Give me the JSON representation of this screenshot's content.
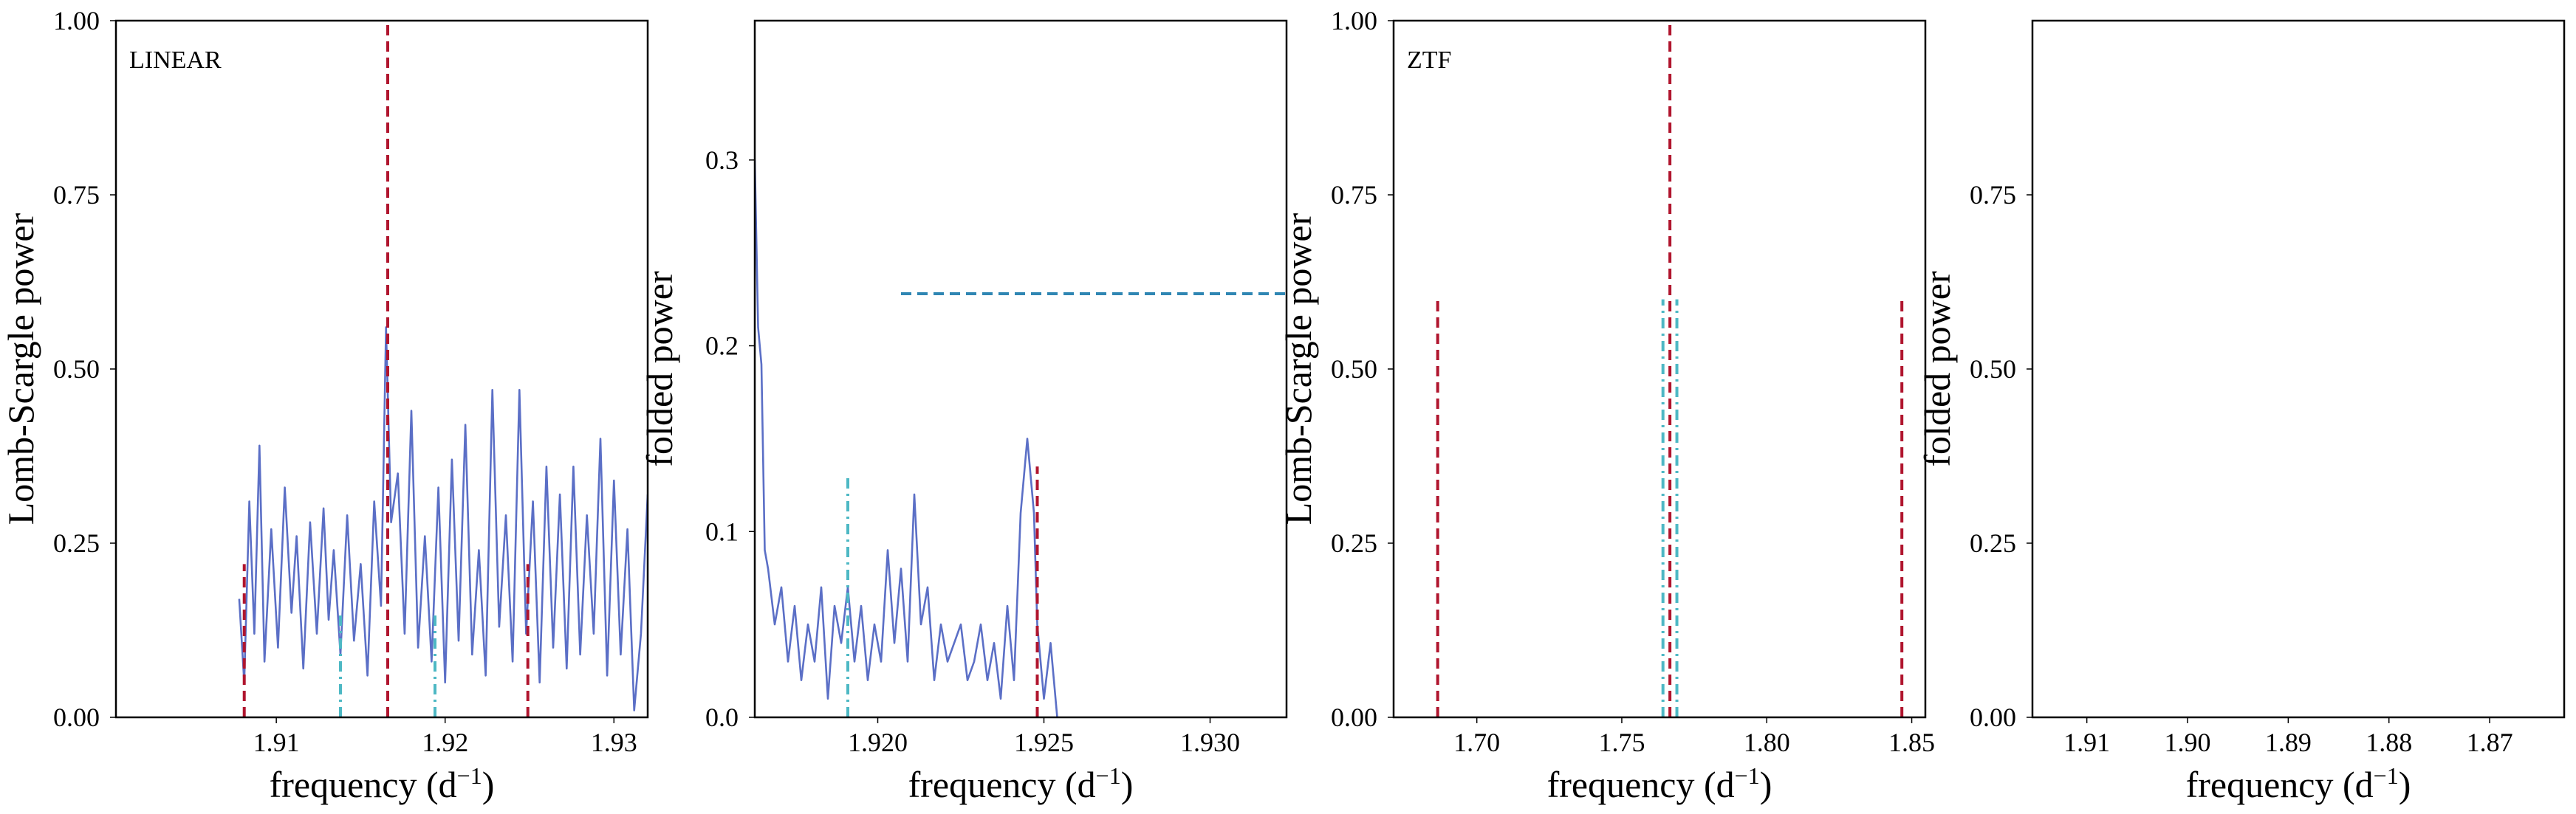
{
  "colors": {
    "series": "#5b6fc6",
    "primary_marker": "#b0152e",
    "alias_marker": "#4db8c4",
    "reference_line": "#2f86b3"
  },
  "chart_data": [
    {
      "type": "line",
      "panel_label": "LINEAR",
      "xlabel": "frequency (d",
      "xlabel_sup": "−1",
      "xlabel_end": ")",
      "ylabel": "Lomb-Scargle power",
      "xlim": [
        1.9005,
        1.932
      ],
      "ylim": [
        0,
        1.0
      ],
      "xticks": [
        {
          "value": 1.91,
          "label": "1.91"
        },
        {
          "value": 1.92,
          "label": "1.92"
        },
        {
          "value": 1.93,
          "label": "1.93"
        }
      ],
      "yticks": [
        {
          "value": 0.0,
          "label": "0.00"
        },
        {
          "value": 0.25,
          "label": "0.25"
        },
        {
          "value": 0.5,
          "label": "0.50"
        },
        {
          "value": 0.75,
          "label": "0.75"
        },
        {
          "value": 1.0,
          "label": "1.00"
        }
      ],
      "series": [
        {
          "x": [
            1.9078,
            1.9081,
            1.9084,
            1.9087,
            1.909,
            1.9093,
            1.9097,
            1.9101,
            1.9105,
            1.9109,
            1.9112,
            1.9116,
            1.912,
            1.9124,
            1.9128,
            1.9131,
            1.9134,
            1.9138,
            1.9142,
            1.9146,
            1.915,
            1.9154,
            1.9158,
            1.9162,
            1.9165,
            1.9168,
            1.9172,
            1.9176,
            1.918,
            1.9184,
            1.9188,
            1.9192,
            1.9196,
            1.92,
            1.9204,
            1.9208,
            1.9212,
            1.9216,
            1.922,
            1.9224,
            1.9228,
            1.9232,
            1.9236,
            1.924,
            1.9244,
            1.9248,
            1.9252,
            1.9256,
            1.926,
            1.9264,
            1.9268,
            1.9272,
            1.9276,
            1.928,
            1.9284,
            1.9288,
            1.9292,
            1.9296,
            1.93,
            1.9304,
            1.9308,
            1.9312,
            1.9316,
            1.932
          ],
          "y": [
            0.17,
            0.05,
            0.31,
            0.12,
            0.39,
            0.08,
            0.27,
            0.1,
            0.33,
            0.15,
            0.26,
            0.07,
            0.28,
            0.12,
            0.3,
            0.14,
            0.24,
            0.09,
            0.29,
            0.11,
            0.22,
            0.06,
            0.31,
            0.16,
            0.56,
            0.28,
            0.35,
            0.12,
            0.44,
            0.1,
            0.26,
            0.08,
            0.33,
            0.05,
            0.37,
            0.11,
            0.42,
            0.09,
            0.24,
            0.06,
            0.47,
            0.13,
            0.29,
            0.08,
            0.47,
            0.12,
            0.31,
            0.05,
            0.36,
            0.1,
            0.32,
            0.07,
            0.36,
            0.09,
            0.29,
            0.12,
            0.4,
            0.06,
            0.34,
            0.09,
            0.27,
            0.01,
            0.12,
            0.32
          ]
        }
      ],
      "vlines": [
        {
          "x": 1.9081,
          "y0": 0,
          "y1": 0.22,
          "style": "primary"
        },
        {
          "x": 1.9166,
          "y0": 0,
          "y1": 1.0,
          "style": "primary"
        },
        {
          "x": 1.9249,
          "y0": 0,
          "y1": 0.22,
          "style": "primary"
        },
        {
          "x": 1.9138,
          "y0": 0,
          "y1": 0.15,
          "style": "alias"
        },
        {
          "x": 1.9194,
          "y0": 0,
          "y1": 0.15,
          "style": "alias"
        }
      ],
      "hlines": []
    },
    {
      "type": "line",
      "panel_label": "",
      "xlabel": "frequency (d",
      "xlabel_sup": "−1",
      "xlabel_end": ")",
      "ylabel": "folded power",
      "xlim": [
        1.9163,
        1.9323
      ],
      "ylim": [
        0,
        0.375
      ],
      "xticks": [
        {
          "value": 1.92,
          "label": "1.920"
        },
        {
          "value": 1.925,
          "label": "1.925"
        },
        {
          "value": 1.93,
          "label": "1.930"
        }
      ],
      "yticks": [
        {
          "value": 0.0,
          "label": "0.0"
        },
        {
          "value": 0.1,
          "label": "0.1"
        },
        {
          "value": 0.2,
          "label": "0.2"
        },
        {
          "value": 0.3,
          "label": "0.3"
        }
      ],
      "series": [
        {
          "x": [
            1.9163,
            1.9164,
            1.9165,
            1.9166,
            1.9167,
            1.9169,
            1.9171,
            1.9173,
            1.9175,
            1.9177,
            1.9179,
            1.9181,
            1.9183,
            1.9185,
            1.9187,
            1.9189,
            1.9191,
            1.9193,
            1.9195,
            1.9197,
            1.9199,
            1.9201,
            1.9203,
            1.9205,
            1.9207,
            1.9209,
            1.9211,
            1.9213,
            1.9215,
            1.9217,
            1.9219,
            1.9221,
            1.9223,
            1.9225,
            1.9227,
            1.9229,
            1.9231,
            1.9233,
            1.9235,
            1.9237,
            1.9239,
            1.9241,
            1.9243,
            1.9245,
            1.9247,
            1.9248,
            1.9249,
            1.925,
            1.9252,
            1.9254
          ],
          "y": [
            0.3,
            0.21,
            0.19,
            0.09,
            0.08,
            0.05,
            0.07,
            0.03,
            0.06,
            0.02,
            0.05,
            0.03,
            0.07,
            0.01,
            0.06,
            0.04,
            0.07,
            0.03,
            0.06,
            0.02,
            0.05,
            0.03,
            0.09,
            0.04,
            0.08,
            0.03,
            0.12,
            0.05,
            0.07,
            0.02,
            0.05,
            0.03,
            0.04,
            0.05,
            0.02,
            0.03,
            0.05,
            0.02,
            0.04,
            0.01,
            0.06,
            0.02,
            0.11,
            0.15,
            0.11,
            0.05,
            0.03,
            0.01,
            0.04,
            0.0
          ]
        }
      ],
      "vlines": [
        {
          "x": 1.9191,
          "y0": 0,
          "y1": 0.13,
          "style": "alias"
        },
        {
          "x": 1.9248,
          "y0": 0,
          "y1": 0.135,
          "style": "primary"
        }
      ],
      "hlines": [
        {
          "y": 0.228,
          "x0": 1.9207,
          "x1": 1.9323,
          "style": "reference"
        }
      ]
    },
    {
      "type": "line",
      "panel_label": "ZTF",
      "xlabel": "frequency (d",
      "xlabel_sup": "−1",
      "xlabel_end": ")",
      "ylabel": "Lomb-Scargle power",
      "xlim": [
        1.6713,
        1.8547
      ],
      "ylim": [
        0,
        1.0
      ],
      "xticks": [
        {
          "value": 1.7,
          "label": "1.70"
        },
        {
          "value": 1.75,
          "label": "1.75"
        },
        {
          "value": 1.8,
          "label": "1.80"
        },
        {
          "value": 1.85,
          "label": "1.85"
        }
      ],
      "yticks": [
        {
          "value": 0.0,
          "label": "0.00"
        },
        {
          "value": 0.25,
          "label": "0.25"
        },
        {
          "value": 0.5,
          "label": "0.50"
        },
        {
          "value": 0.75,
          "label": "0.75"
        },
        {
          "value": 1.0,
          "label": "1.00"
        }
      ],
      "series": [],
      "vlines": [
        {
          "x": 1.6865,
          "y0": 0,
          "y1": 0.6,
          "style": "primary"
        },
        {
          "x": 1.7666,
          "y0": 0,
          "y1": 1.0,
          "style": "primary"
        },
        {
          "x": 1.8466,
          "y0": 0,
          "y1": 0.6,
          "style": "primary"
        },
        {
          "x": 1.7642,
          "y0": 0,
          "y1": 0.6,
          "style": "alias"
        },
        {
          "x": 1.769,
          "y0": 0,
          "y1": 0.6,
          "style": "alias"
        }
      ],
      "hlines": []
    },
    {
      "type": "line",
      "panel_label": "",
      "xlabel": "frequency (d",
      "xlabel_sup": "−1",
      "xlabel_end": ")",
      "ylabel": "folded power",
      "xlim": [
        1.9154,
        1.8626
      ],
      "ylim": [
        0,
        1.0
      ],
      "xticks": [
        {
          "value": 1.91,
          "label": "1.91"
        },
        {
          "value": 1.9,
          "label": "1.90"
        },
        {
          "value": 1.89,
          "label": "1.89"
        },
        {
          "value": 1.88,
          "label": "1.88"
        },
        {
          "value": 1.87,
          "label": "1.87"
        }
      ],
      "yticks": [
        {
          "value": 0.0,
          "label": "0.00"
        },
        {
          "value": 0.25,
          "label": "0.25"
        },
        {
          "value": 0.5,
          "label": "0.50"
        },
        {
          "value": 0.75,
          "label": "0.75"
        }
      ],
      "series": [],
      "vlines": [],
      "hlines": []
    }
  ]
}
